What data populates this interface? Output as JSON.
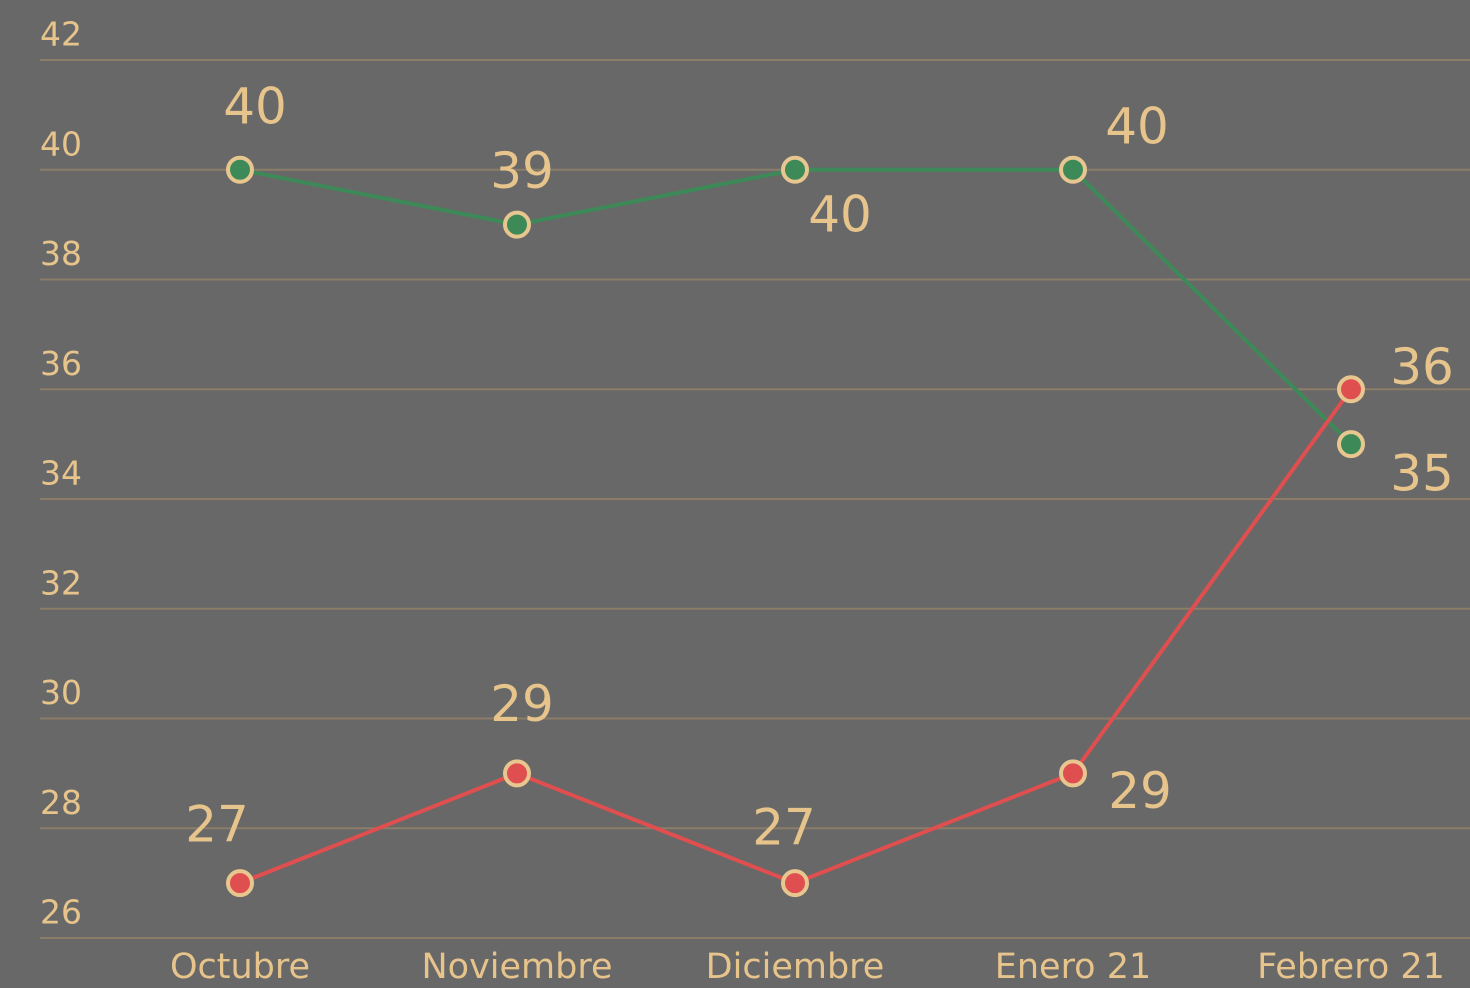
{
  "chart_data": {
    "type": "line",
    "categories": [
      "Octubre",
      "Noviembre",
      "Diciembre",
      "Enero 21",
      "Febrero 21"
    ],
    "series": [
      {
        "color": "#3d8a58",
        "values": [
          40,
          39,
          40,
          40,
          35
        ]
      },
      {
        "color": "#e04f4f",
        "values": [
          27,
          29,
          27,
          29,
          36
        ]
      }
    ],
    "ylim": [
      26,
      42
    ],
    "yticks": [
      26,
      28,
      30,
      32,
      34,
      36,
      38,
      40,
      42
    ],
    "grid": true
  }
}
